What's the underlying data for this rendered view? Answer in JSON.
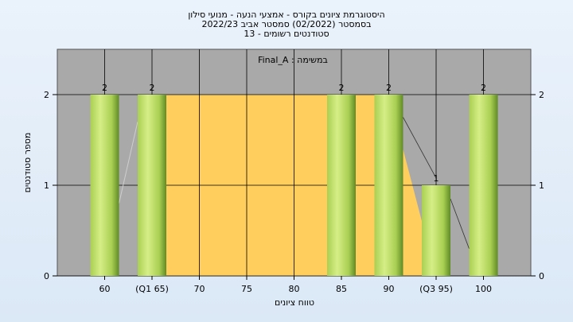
{
  "chart_data": {
    "type": "bar",
    "title_lines": [
      "היסטוגרמת ציונים בקורס - אמצעי הנעה - מנועי סילון",
      "בסמסטר  (02/2022)  סמסטר אביב 2022/23",
      "סטודנטים רשומים - 13"
    ],
    "inner_title": "Final_A : במשימה",
    "xlabel": "טווח ציונים",
    "ylabel": "מספר סטודנטים",
    "x_ticks": [
      {
        "label": "60",
        "value": 60
      },
      {
        "label": "(Q1 65)",
        "value": 65
      },
      {
        "label": "70",
        "value": 70
      },
      {
        "label": "75",
        "value": 75
      },
      {
        "label": "80",
        "value": 80
      },
      {
        "label": "85",
        "value": 85
      },
      {
        "label": "90",
        "value": 90
      },
      {
        "label": "(Q3 95)",
        "value": 95
      },
      {
        "label": "100",
        "value": 100
      }
    ],
    "xlim": [
      55,
      105
    ],
    "y_ticks": [
      0,
      1,
      2
    ],
    "ylim": [
      0,
      2.5
    ],
    "bars": [
      {
        "x": 60,
        "value": 2,
        "label": "2"
      },
      {
        "x": 65,
        "value": 2,
        "label": "2"
      },
      {
        "x": 85,
        "value": 2,
        "label": "2"
      },
      {
        "x": 90,
        "value": 2,
        "label": "2"
      },
      {
        "x": 95,
        "value": 1,
        "label": "1"
      },
      {
        "x": 100,
        "value": 2,
        "label": "2"
      }
    ],
    "iqr_band": {
      "from": 65,
      "to": 95
    },
    "grid": true,
    "colors": {
      "plot_bg": "#a9a9a9",
      "band": "#ffce5c",
      "bar_light": "#d6ee86",
      "bar_mid": "#a9cf52",
      "bar_dark": "#5f8a26",
      "grid": "#000000"
    }
  }
}
